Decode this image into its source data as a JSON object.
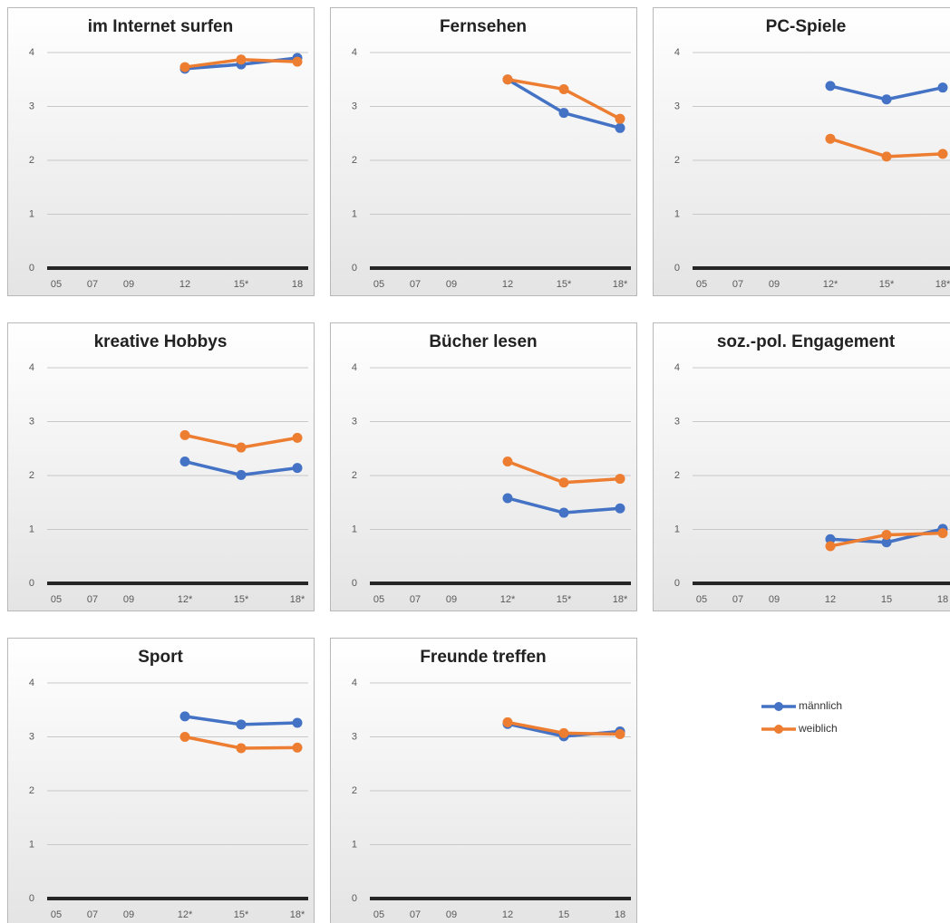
{
  "chart_data": [
    {
      "type": "line",
      "title": "im Internet surfen",
      "categories": [
        "05",
        "07",
        "09",
        "12",
        "15*",
        "18"
      ],
      "ylim": [
        0,
        4
      ],
      "yticks": [
        0,
        1,
        2,
        3,
        4
      ],
      "grid": true,
      "series": [
        {
          "name": "männlich",
          "color": "#4472c4",
          "values": [
            null,
            null,
            null,
            3.7,
            3.78,
            3.9
          ]
        },
        {
          "name": "weiblich",
          "color": "#ed7d31",
          "values": [
            null,
            null,
            null,
            3.73,
            3.87,
            3.83
          ]
        }
      ]
    },
    {
      "type": "line",
      "title": "Fernsehen",
      "categories": [
        "05",
        "07",
        "09",
        "12",
        "15*",
        "18*"
      ],
      "ylim": [
        0,
        4
      ],
      "yticks": [
        0,
        1,
        2,
        3,
        4
      ],
      "grid": true,
      "series": [
        {
          "name": "männlich",
          "color": "#4472c4",
          "values": [
            null,
            null,
            null,
            3.5,
            2.88,
            2.6
          ]
        },
        {
          "name": "weiblich",
          "color": "#ed7d31",
          "values": [
            null,
            null,
            null,
            3.5,
            3.32,
            2.77
          ]
        }
      ]
    },
    {
      "type": "line",
      "title": "PC-Spiele",
      "categories": [
        "05",
        "07",
        "09",
        "12*",
        "15*",
        "18*"
      ],
      "ylim": [
        0,
        4
      ],
      "yticks": [
        0,
        1,
        2,
        3,
        4
      ],
      "grid": true,
      "series": [
        {
          "name": "männlich",
          "color": "#4472c4",
          "values": [
            null,
            null,
            null,
            3.38,
            3.13,
            3.35
          ]
        },
        {
          "name": "weiblich",
          "color": "#ed7d31",
          "values": [
            null,
            null,
            null,
            2.4,
            2.07,
            2.12
          ]
        }
      ]
    },
    {
      "type": "line",
      "title": "kreative Hobbys",
      "categories": [
        "05",
        "07",
        "09",
        "12*",
        "15*",
        "18*"
      ],
      "ylim": [
        0,
        4
      ],
      "yticks": [
        0,
        1,
        2,
        3,
        4
      ],
      "grid": true,
      "series": [
        {
          "name": "männlich",
          "color": "#4472c4",
          "values": [
            null,
            null,
            null,
            2.26,
            2.01,
            2.14
          ]
        },
        {
          "name": "weiblich",
          "color": "#ed7d31",
          "values": [
            null,
            null,
            null,
            2.75,
            2.52,
            2.7
          ]
        }
      ]
    },
    {
      "type": "line",
      "title": "Bücher lesen",
      "categories": [
        "05",
        "07",
        "09",
        "12*",
        "15*",
        "18*"
      ],
      "ylim": [
        0,
        4
      ],
      "yticks": [
        0,
        1,
        2,
        3,
        4
      ],
      "grid": true,
      "series": [
        {
          "name": "männlich",
          "color": "#4472c4",
          "values": [
            null,
            null,
            null,
            1.58,
            1.31,
            1.39
          ]
        },
        {
          "name": "weiblich",
          "color": "#ed7d31",
          "values": [
            null,
            null,
            null,
            2.26,
            1.87,
            1.94
          ]
        }
      ]
    },
    {
      "type": "line",
      "title": "soz.-pol. Engagement",
      "categories": [
        "05",
        "07",
        "09",
        "12",
        "15",
        "18"
      ],
      "ylim": [
        0,
        4
      ],
      "yticks": [
        0,
        1,
        2,
        3,
        4
      ],
      "grid": true,
      "series": [
        {
          "name": "männlich",
          "color": "#4472c4",
          "values": [
            null,
            null,
            null,
            0.82,
            0.76,
            1.01
          ]
        },
        {
          "name": "weiblich",
          "color": "#ed7d31",
          "values": [
            null,
            null,
            null,
            0.69,
            0.9,
            0.93
          ]
        }
      ]
    },
    {
      "type": "line",
      "title": "Sport",
      "categories": [
        "05",
        "07",
        "09",
        "12*",
        "15*",
        "18*"
      ],
      "ylim": [
        0,
        4
      ],
      "yticks": [
        0,
        1,
        2,
        3,
        4
      ],
      "grid": true,
      "series": [
        {
          "name": "männlich",
          "color": "#4472c4",
          "values": [
            null,
            null,
            null,
            3.38,
            3.23,
            3.26
          ]
        },
        {
          "name": "weiblich",
          "color": "#ed7d31",
          "values": [
            null,
            null,
            null,
            3.0,
            2.79,
            2.8
          ]
        }
      ]
    },
    {
      "type": "line",
      "title": "Freunde treffen",
      "categories": [
        "05",
        "07",
        "09",
        "12",
        "15",
        "18"
      ],
      "ylim": [
        0,
        4
      ],
      "yticks": [
        0,
        1,
        2,
        3,
        4
      ],
      "grid": true,
      "series": [
        {
          "name": "männlich",
          "color": "#4472c4",
          "values": [
            null,
            null,
            null,
            3.24,
            3.01,
            3.1
          ]
        },
        {
          "name": "weiblich",
          "color": "#ed7d31",
          "values": [
            null,
            null,
            null,
            3.27,
            3.07,
            3.05
          ]
        }
      ]
    }
  ]
}
